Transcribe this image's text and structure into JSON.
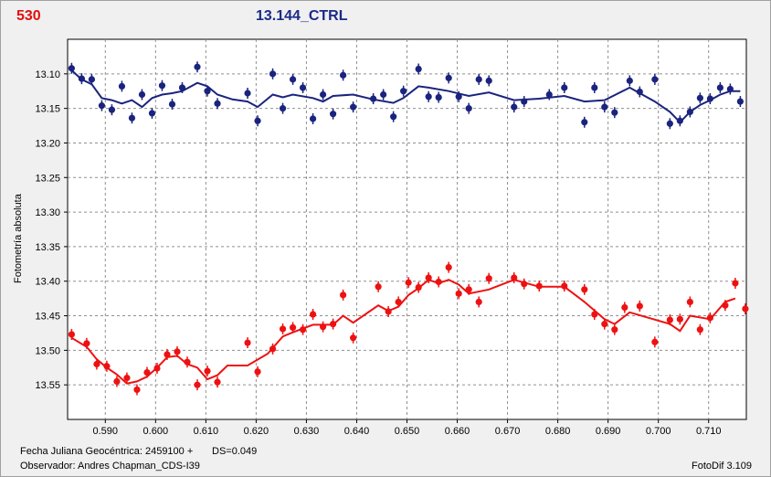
{
  "header": {
    "id": "530",
    "title": "13.144_CTRL"
  },
  "footer": {
    "date_label": "Fecha Juliana Geocéntrica: 2459100 +",
    "ds_label": "DS=0.049",
    "observer_label": "Observador: Andres Chapman_CDS-I39",
    "software_label": "FotoDif 3.109"
  },
  "colors": {
    "blue": "#1a237e",
    "red": "#ee1111",
    "grid": "#909090"
  },
  "chart_data": {
    "type": "scatter",
    "ylabel": "Fotometría absoluta",
    "xlabel": "",
    "xlim": [
      0.5825,
      0.7175
    ],
    "ylim": [
      13.05,
      13.6
    ],
    "y_inverted": true,
    "grid": true,
    "x_ticks": [
      "0.590",
      "0.600",
      "0.610",
      "0.620",
      "0.630",
      "0.640",
      "0.650",
      "0.660",
      "0.670",
      "0.680",
      "0.690",
      "0.700",
      "0.710"
    ],
    "y_ticks": [
      "13.10",
      "13.15",
      "13.20",
      "13.25",
      "13.30",
      "13.35",
      "13.40",
      "13.45",
      "13.50",
      "13.55"
    ],
    "series": [
      {
        "color": "blue",
        "points": [
          [
            0.5833,
            13.092
          ],
          [
            0.5853,
            13.107
          ],
          [
            0.5873,
            13.108
          ],
          [
            0.5893,
            13.146
          ],
          [
            0.5913,
            13.152
          ],
          [
            0.5933,
            13.118
          ],
          [
            0.5953,
            13.164
          ],
          [
            0.5973,
            13.13
          ],
          [
            0.5993,
            13.157
          ],
          [
            0.6013,
            13.117
          ],
          [
            0.6033,
            13.144
          ],
          [
            0.6053,
            13.12
          ],
          [
            0.6083,
            13.09
          ],
          [
            0.6103,
            13.125
          ],
          [
            0.6123,
            13.143
          ],
          [
            0.6183,
            13.128
          ],
          [
            0.6203,
            13.168
          ],
          [
            0.6233,
            13.1
          ],
          [
            0.6253,
            13.15
          ],
          [
            0.6273,
            13.108
          ],
          [
            0.6293,
            13.12
          ],
          [
            0.6313,
            13.165
          ],
          [
            0.6333,
            13.13
          ],
          [
            0.6353,
            13.158
          ],
          [
            0.6373,
            13.102
          ],
          [
            0.6393,
            13.148
          ],
          [
            0.6433,
            13.136
          ],
          [
            0.6453,
            13.13
          ],
          [
            0.6473,
            13.162
          ],
          [
            0.6493,
            13.125
          ],
          [
            0.6523,
            13.093
          ],
          [
            0.6543,
            13.133
          ],
          [
            0.6563,
            13.134
          ],
          [
            0.6583,
            13.106
          ],
          [
            0.6603,
            13.133
          ],
          [
            0.6623,
            13.15
          ],
          [
            0.6643,
            13.108
          ],
          [
            0.6663,
            13.11
          ],
          [
            0.6713,
            13.148
          ],
          [
            0.6733,
            13.14
          ],
          [
            0.6783,
            13.13
          ],
          [
            0.6813,
            13.12
          ],
          [
            0.6853,
            13.17
          ],
          [
            0.6873,
            13.12
          ],
          [
            0.6893,
            13.148
          ],
          [
            0.6913,
            13.156
          ],
          [
            0.6943,
            13.11
          ],
          [
            0.6963,
            13.126
          ],
          [
            0.6993,
            13.108
          ],
          [
            0.7023,
            13.172
          ],
          [
            0.7043,
            13.168
          ],
          [
            0.7063,
            13.155
          ],
          [
            0.7083,
            13.135
          ],
          [
            0.7103,
            13.136
          ],
          [
            0.7123,
            13.12
          ],
          [
            0.7143,
            13.122
          ],
          [
            0.7163,
            13.14
          ]
        ],
        "trend": [
          [
            0.5833,
            13.095
          ],
          [
            0.5853,
            13.108
          ],
          [
            0.5873,
            13.115
          ],
          [
            0.5893,
            13.135
          ],
          [
            0.5913,
            13.138
          ],
          [
            0.5933,
            13.143
          ],
          [
            0.5953,
            13.138
          ],
          [
            0.5973,
            13.148
          ],
          [
            0.5993,
            13.135
          ],
          [
            0.6013,
            13.13
          ],
          [
            0.6033,
            13.128
          ],
          [
            0.6053,
            13.125
          ],
          [
            0.6083,
            13.113
          ],
          [
            0.6103,
            13.118
          ],
          [
            0.6123,
            13.13
          ],
          [
            0.6153,
            13.137
          ],
          [
            0.6183,
            13.14
          ],
          [
            0.6203,
            13.148
          ],
          [
            0.6233,
            13.13
          ],
          [
            0.6253,
            13.134
          ],
          [
            0.6273,
            13.13
          ],
          [
            0.6313,
            13.135
          ],
          [
            0.6333,
            13.14
          ],
          [
            0.6353,
            13.132
          ],
          [
            0.6393,
            13.13
          ],
          [
            0.6433,
            13.137
          ],
          [
            0.6473,
            13.142
          ],
          [
            0.6493,
            13.135
          ],
          [
            0.6523,
            13.118
          ],
          [
            0.6543,
            13.12
          ],
          [
            0.6583,
            13.125
          ],
          [
            0.6623,
            13.132
          ],
          [
            0.6663,
            13.127
          ],
          [
            0.6713,
            13.138
          ],
          [
            0.6763,
            13.136
          ],
          [
            0.6813,
            13.132
          ],
          [
            0.6853,
            13.14
          ],
          [
            0.6893,
            13.138
          ],
          [
            0.6943,
            13.12
          ],
          [
            0.6993,
            13.14
          ],
          [
            0.7023,
            13.155
          ],
          [
            0.7043,
            13.17
          ],
          [
            0.7063,
            13.155
          ],
          [
            0.7083,
            13.145
          ],
          [
            0.7103,
            13.138
          ],
          [
            0.7123,
            13.13
          ],
          [
            0.7143,
            13.125
          ],
          [
            0.7163,
            13.125
          ]
        ]
      },
      {
        "color": "red",
        "points": [
          [
            0.5833,
            13.477
          ],
          [
            0.5863,
            13.49
          ],
          [
            0.5883,
            13.52
          ],
          [
            0.5903,
            13.523
          ],
          [
            0.5923,
            13.545
          ],
          [
            0.5943,
            13.54
          ],
          [
            0.5963,
            13.557
          ],
          [
            0.5983,
            13.532
          ],
          [
            0.6003,
            13.526
          ],
          [
            0.6023,
            13.506
          ],
          [
            0.6043,
            13.502
          ],
          [
            0.6063,
            13.517
          ],
          [
            0.6083,
            13.55
          ],
          [
            0.6103,
            13.53
          ],
          [
            0.6123,
            13.546
          ],
          [
            0.6183,
            13.489
          ],
          [
            0.6203,
            13.531
          ],
          [
            0.6233,
            13.498
          ],
          [
            0.6253,
            13.469
          ],
          [
            0.6273,
            13.467
          ],
          [
            0.6293,
            13.47
          ],
          [
            0.6313,
            13.448
          ],
          [
            0.6333,
            13.466
          ],
          [
            0.6353,
            13.462
          ],
          [
            0.6373,
            13.42
          ],
          [
            0.6393,
            13.482
          ],
          [
            0.6443,
            13.408
          ],
          [
            0.6463,
            13.444
          ],
          [
            0.6483,
            13.43
          ],
          [
            0.6503,
            13.402
          ],
          [
            0.6523,
            13.409
          ],
          [
            0.6543,
            13.395
          ],
          [
            0.6563,
            13.401
          ],
          [
            0.6583,
            13.38
          ],
          [
            0.6603,
            13.418
          ],
          [
            0.6623,
            13.412
          ],
          [
            0.6643,
            13.43
          ],
          [
            0.6663,
            13.396
          ],
          [
            0.6713,
            13.395
          ],
          [
            0.6733,
            13.404
          ],
          [
            0.6763,
            13.407
          ],
          [
            0.6813,
            13.407
          ],
          [
            0.6853,
            13.412
          ],
          [
            0.6873,
            13.448
          ],
          [
            0.6893,
            13.462
          ],
          [
            0.6913,
            13.47
          ],
          [
            0.6933,
            13.438
          ],
          [
            0.6963,
            13.436
          ],
          [
            0.6993,
            13.488
          ],
          [
            0.7023,
            13.456
          ],
          [
            0.7043,
            13.455
          ],
          [
            0.7063,
            13.43
          ],
          [
            0.7083,
            13.47
          ],
          [
            0.7103,
            13.453
          ],
          [
            0.7133,
            13.435
          ],
          [
            0.7153,
            13.403
          ],
          [
            0.7173,
            13.44
          ]
        ],
        "trend": [
          [
            0.5833,
            13.482
          ],
          [
            0.5863,
            13.495
          ],
          [
            0.5883,
            13.513
          ],
          [
            0.5903,
            13.525
          ],
          [
            0.5923,
            13.535
          ],
          [
            0.5943,
            13.548
          ],
          [
            0.5963,
            13.545
          ],
          [
            0.5983,
            13.538
          ],
          [
            0.6003,
            13.525
          ],
          [
            0.6023,
            13.51
          ],
          [
            0.6043,
            13.508
          ],
          [
            0.6063,
            13.52
          ],
          [
            0.6083,
            13.525
          ],
          [
            0.6103,
            13.542
          ],
          [
            0.6123,
            13.536
          ],
          [
            0.6143,
            13.522
          ],
          [
            0.6183,
            13.522
          ],
          [
            0.6223,
            13.505
          ],
          [
            0.6253,
            13.48
          ],
          [
            0.6273,
            13.474
          ],
          [
            0.6313,
            13.463
          ],
          [
            0.6353,
            13.463
          ],
          [
            0.6373,
            13.45
          ],
          [
            0.6393,
            13.46
          ],
          [
            0.6443,
            13.435
          ],
          [
            0.6463,
            13.443
          ],
          [
            0.6483,
            13.437
          ],
          [
            0.6503,
            13.42
          ],
          [
            0.6523,
            13.41
          ],
          [
            0.6543,
            13.398
          ],
          [
            0.6563,
            13.403
          ],
          [
            0.6583,
            13.398
          ],
          [
            0.6603,
            13.405
          ],
          [
            0.6623,
            13.418
          ],
          [
            0.6663,
            13.412
          ],
          [
            0.6713,
            13.398
          ],
          [
            0.6763,
            13.408
          ],
          [
            0.6813,
            13.408
          ],
          [
            0.6853,
            13.43
          ],
          [
            0.6893,
            13.455
          ],
          [
            0.6913,
            13.462
          ],
          [
            0.6943,
            13.445
          ],
          [
            0.7023,
            13.462
          ],
          [
            0.7043,
            13.472
          ],
          [
            0.7063,
            13.45
          ],
          [
            0.7103,
            13.455
          ],
          [
            0.7133,
            13.43
          ],
          [
            0.7153,
            13.425
          ]
        ]
      }
    ]
  }
}
